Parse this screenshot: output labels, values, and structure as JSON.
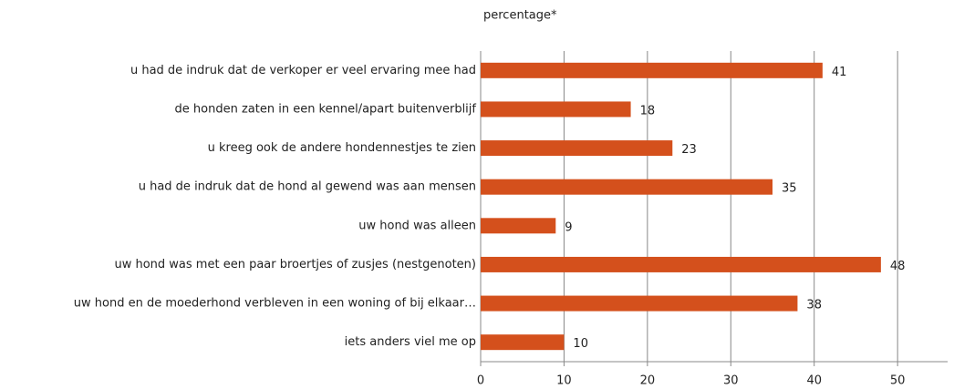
{
  "chart_data": {
    "type": "bar",
    "orientation": "horizontal",
    "x_label": "percentage*",
    "categories": [
      "u had de indruk dat de verkoper er veel ervaring mee had",
      "de honden zaten in een kennel/apart buitenverblijf",
      "u kreeg ook de andere hondennestjes te zien",
      "u had de indruk dat de hond al gewend was aan mensen",
      "uw hond was alleen",
      "uw hond was met een paar broertjes of zusjes (nestgenoten)",
      "uw hond en de moederhond verbleven in een woning of bij elkaar…",
      "iets anders viel me op"
    ],
    "values": [
      41,
      18,
      23,
      35,
      9,
      48,
      38,
      10
    ],
    "color": "#d4501c",
    "xlim": [
      0,
      56
    ],
    "xticks": [
      0,
      10,
      20,
      30,
      40,
      50
    ],
    "grid": true
  }
}
